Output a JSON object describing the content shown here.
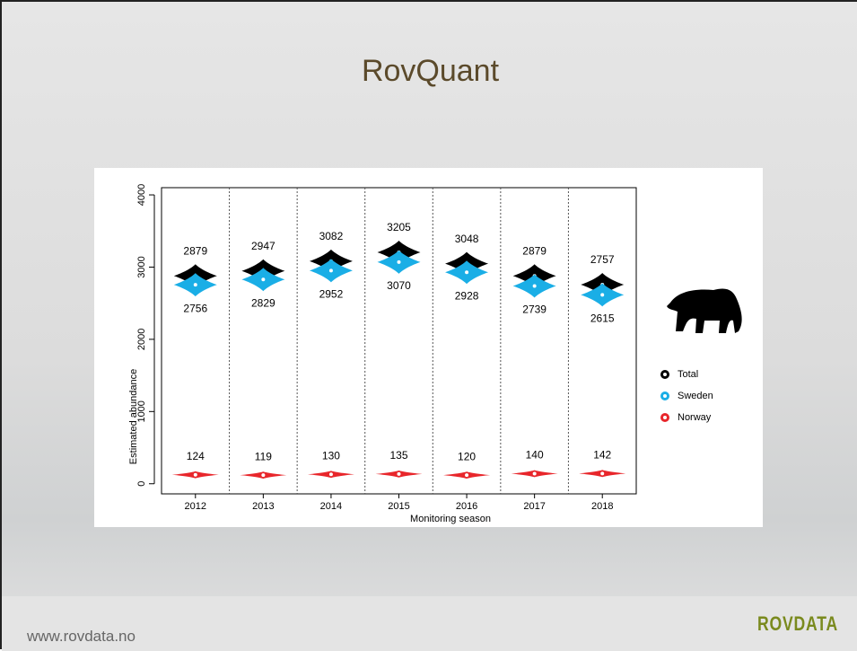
{
  "title": "RovQuant",
  "footer": "www.rovdata.no",
  "logo": "ROVDATA",
  "chart_data": {
    "type": "violin",
    "xlabel": "Monitoring season",
    "ylabel": "Estimated abundance",
    "categories": [
      "2012",
      "2013",
      "2014",
      "2015",
      "2016",
      "2017",
      "2018"
    ],
    "series": [
      {
        "name": "Total",
        "color": "#000000",
        "values": [
          2879,
          2947,
          3082,
          3205,
          3048,
          2879,
          2757
        ]
      },
      {
        "name": "Sweden",
        "color": "#1aaee6",
        "values": [
          2756,
          2829,
          2952,
          3070,
          2928,
          2739,
          2615
        ]
      },
      {
        "name": "Norway",
        "color": "#e8262b",
        "values": [
          124,
          119,
          130,
          135,
          120,
          140,
          142
        ]
      }
    ],
    "ylim": [
      -140,
      4100
    ],
    "yticks": [
      0,
      1000,
      2000,
      3000,
      4000
    ],
    "legend": "right"
  }
}
